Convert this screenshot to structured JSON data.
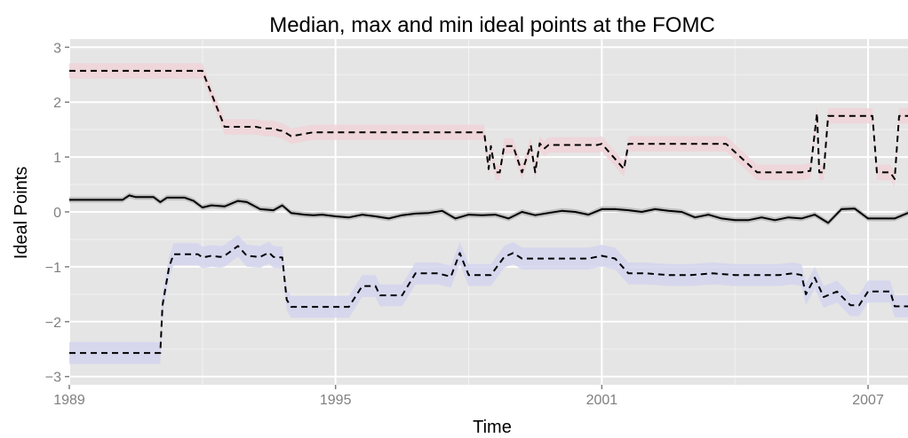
{
  "chart_data": {
    "type": "line",
    "title": "Median, max and min ideal points at the FOMC",
    "xlabel": "Time",
    "ylabel": "Ideal Points",
    "xlim": [
      1989,
      2007.9
    ],
    "ylim": [
      -3.15,
      3.15
    ],
    "xticks": [
      {
        "value": 1989,
        "label": "1989"
      },
      {
        "value": 1995,
        "label": "1995"
      },
      {
        "value": 2001,
        "label": "2001"
      },
      {
        "value": 2007,
        "label": "2007"
      }
    ],
    "yticks": [
      {
        "value": 3,
        "label": "3"
      },
      {
        "value": 2,
        "label": "2"
      },
      {
        "value": 1,
        "label": "1"
      },
      {
        "value": 0,
        "label": "0"
      },
      {
        "value": -1,
        "label": "−1"
      },
      {
        "value": -2,
        "label": "−2"
      },
      {
        "value": -3,
        "label": "−3"
      }
    ],
    "grid": true,
    "legend": "none",
    "colors": {
      "panel": "#e5e5e5",
      "grid_major": "#ffffff",
      "grid_minor": "#f2f2f2",
      "line": "#000000",
      "band_max": "#f0d4d8",
      "band_median": "#b9b9b9",
      "band_min": "#d4d5ee"
    },
    "series": [
      {
        "role": "max",
        "line_style": "dashed",
        "band_halfwidth": 0.14,
        "x": [
          1989.0,
          1991.5,
          1991.6,
          1991.65,
          1992.0,
          1992.5,
          1993.0,
          1993.1,
          1993.2,
          1993.4,
          1993.6,
          1993.75,
          1993.8,
          1994.0,
          1994.5,
          1995.0,
          1995.5,
          1996.0,
          1996.5,
          1996.7,
          1996.8,
          1997.0,
          1997.5,
          1997.9,
          1998.0,
          1998.1,
          1998.2,
          1998.3,
          1998.35,
          1998.45,
          1998.5,
          1998.6,
          1998.7,
          1998.8,
          1998.9,
          1999.0,
          1999.2,
          1999.4,
          1999.5,
          1999.6,
          1999.7,
          1999.8,
          2000.0,
          2000.5,
          2000.8,
          2000.9,
          2001.0,
          2001.5,
          2001.6,
          2001.7,
          2002.0,
          2002.5,
          2003.0,
          2003.3,
          2003.5,
          2003.6,
          2003.7,
          2003.8,
          2004.5,
          2004.9,
          2005.5,
          2005.7,
          2005.85,
          2005.9,
          2006.0,
          2006.1,
          2006.2,
          2006.3,
          2006.5,
          2007.0,
          2007.1,
          2007.2,
          2007.5,
          2007.6,
          2007.7,
          2007.8,
          2007.9
        ],
        "y": [
          2.57,
          2.57,
          2.57,
          2.57,
          2.57,
          1.55,
          1.55,
          1.55,
          1.55,
          1.52,
          1.52,
          1.48,
          1.48,
          1.38,
          1.45,
          1.45,
          1.45,
          1.45,
          1.45,
          1.45,
          1.45,
          1.45,
          1.45,
          1.45,
          1.45,
          1.45,
          1.45,
          1.45,
          1.45,
          0.78,
          1.2,
          0.72,
          0.72,
          1.2,
          1.2,
          1.2,
          0.72,
          1.22,
          0.72,
          1.25,
          1.15,
          1.22,
          1.22,
          1.22,
          1.22,
          1.22,
          1.24,
          0.78,
          1.24,
          1.24,
          1.24,
          1.24,
          1.24,
          1.24,
          1.24,
          1.24,
          1.24,
          1.24,
          0.72,
          0.72,
          0.72,
          0.75,
          1.8,
          0.72,
          0.72,
          1.75,
          1.75,
          1.75,
          1.75,
          1.75,
          1.75,
          0.72,
          0.72,
          0.6,
          1.75,
          1.75,
          1.75
        ]
      },
      {
        "role": "median",
        "line_style": "solid",
        "band_halfwidth": 0.05,
        "x": [
          1989.0,
          1990.2,
          1990.35,
          1990.5,
          1990.9,
          1991.05,
          1991.2,
          1991.6,
          1991.8,
          1992.0,
          1992.2,
          1992.5,
          1992.8,
          1993.0,
          1993.3,
          1993.6,
          1993.8,
          1994.0,
          1994.3,
          1994.5,
          1994.7,
          1995.0,
          1995.3,
          1995.6,
          1995.9,
          1996.2,
          1996.5,
          1996.8,
          1997.1,
          1997.4,
          1997.7,
          1998.0,
          1998.3,
          1998.6,
          1998.9,
          1999.2,
          1999.5,
          1999.8,
          2000.1,
          2000.4,
          2000.7,
          2001.0,
          2001.3,
          2001.6,
          2001.9,
          2002.2,
          2002.5,
          2002.8,
          2003.1,
          2003.4,
          2003.7,
          2004.0,
          2004.3,
          2004.6,
          2004.9,
          2005.2,
          2005.5,
          2005.8,
          2006.1,
          2006.4,
          2006.7,
          2007.0,
          2007.3,
          2007.6,
          2007.9
        ],
        "y": [
          0.22,
          0.22,
          0.3,
          0.27,
          0.27,
          0.18,
          0.26,
          0.26,
          0.2,
          0.08,
          0.12,
          0.1,
          0.2,
          0.18,
          0.05,
          0.03,
          0.12,
          -0.02,
          -0.05,
          -0.06,
          -0.05,
          -0.08,
          -0.1,
          -0.05,
          -0.08,
          -0.12,
          -0.06,
          -0.03,
          -0.02,
          0.02,
          -0.12,
          -0.05,
          -0.06,
          -0.05,
          -0.12,
          0.0,
          -0.06,
          -0.02,
          0.02,
          0.0,
          -0.05,
          0.05,
          0.05,
          0.03,
          0.0,
          0.05,
          0.02,
          0.0,
          -0.1,
          -0.05,
          -0.12,
          -0.15,
          -0.15,
          -0.1,
          -0.15,
          -0.1,
          -0.12,
          -0.05,
          -0.2,
          0.05,
          0.06,
          -0.12,
          -0.12,
          -0.12,
          -0.02
        ]
      },
      {
        "role": "min",
        "line_style": "dashed",
        "band_halfwidth": 0.2,
        "x": [
          1989.0,
          1991.05,
          1991.1,
          1991.25,
          1991.35,
          1991.6,
          1991.9,
          1992.0,
          1992.2,
          1992.4,
          1992.5,
          1992.8,
          1993.0,
          1993.3,
          1993.5,
          1993.6,
          1993.8,
          1993.9,
          1994.0,
          1994.5,
          1994.7,
          1995.0,
          1995.3,
          1995.6,
          1995.9,
          1996.0,
          1996.2,
          1996.5,
          1996.8,
          1997.0,
          1997.3,
          1997.6,
          1997.8,
          1998.0,
          1998.2,
          1998.5,
          1998.8,
          1999.0,
          1999.2,
          1999.4,
          1999.6,
          1999.8,
          2000.1,
          2000.4,
          2000.7,
          2001.0,
          2001.3,
          2001.6,
          2002.0,
          2002.5,
          2003.0,
          2003.5,
          2004.0,
          2004.5,
          2005.0,
          2005.3,
          2005.5,
          2005.6,
          2005.8,
          2006.0,
          2006.3,
          2006.6,
          2006.8,
          2007.0,
          2007.3,
          2007.5,
          2007.6,
          2007.7,
          2007.9
        ],
        "y": [
          -2.57,
          -2.57,
          -1.7,
          -1.0,
          -0.77,
          -0.77,
          -0.77,
          -0.83,
          -0.8,
          -0.82,
          -0.8,
          -0.62,
          -0.8,
          -0.82,
          -0.74,
          -0.82,
          -0.83,
          -1.6,
          -1.73,
          -1.73,
          -1.73,
          -1.73,
          -1.73,
          -1.35,
          -1.35,
          -1.52,
          -1.52,
          -1.52,
          -1.12,
          -1.12,
          -1.12,
          -1.18,
          -0.75,
          -1.15,
          -1.15,
          -1.15,
          -0.82,
          -0.75,
          -0.85,
          -0.85,
          -0.85,
          -0.85,
          -0.85,
          -0.85,
          -0.85,
          -0.8,
          -0.85,
          -1.12,
          -1.12,
          -1.15,
          -1.15,
          -1.12,
          -1.15,
          -1.15,
          -1.15,
          -1.12,
          -1.15,
          -1.5,
          -1.2,
          -1.55,
          -1.45,
          -1.7,
          -1.7,
          -1.45,
          -1.45,
          -1.45,
          -1.72,
          -1.72,
          -1.72
        ]
      }
    ]
  }
}
